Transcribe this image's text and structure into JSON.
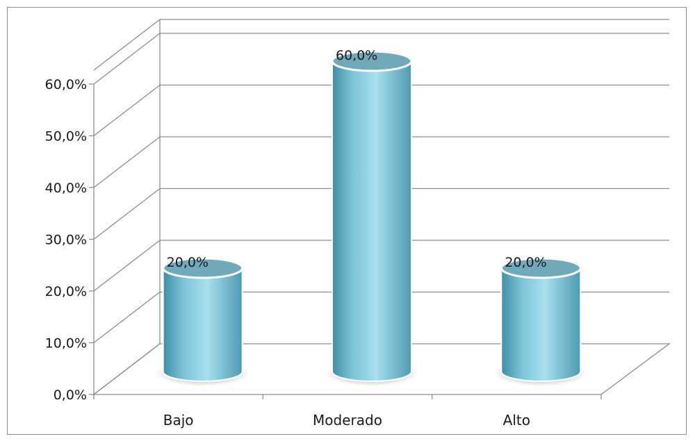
{
  "chart_data": {
    "type": "bar",
    "categories": [
      "Bajo",
      "Moderado",
      "Alto"
    ],
    "values": [
      20.0,
      60.0,
      20.0
    ],
    "data_labels": [
      "20,0%",
      "60,0%",
      "20,0%"
    ],
    "y_tick_labels": [
      "0,0%",
      "10,0%",
      "20,0%",
      "30,0%",
      "40,0%",
      "50,0%",
      "60,0%"
    ],
    "ylim": [
      0,
      60
    ],
    "title": "",
    "xlabel": "",
    "ylabel": "",
    "grid": true,
    "style": "3d-cylinder",
    "colors": {
      "bar_light": "#a8e0ee",
      "bar_mid": "#7cc3d6",
      "bar_dark": "#3f8ea6",
      "top_fill": "#6fa9ba",
      "top_rim": "#ffffff",
      "grid": "#8c8c8c",
      "frame": "#8c8c8c"
    }
  }
}
